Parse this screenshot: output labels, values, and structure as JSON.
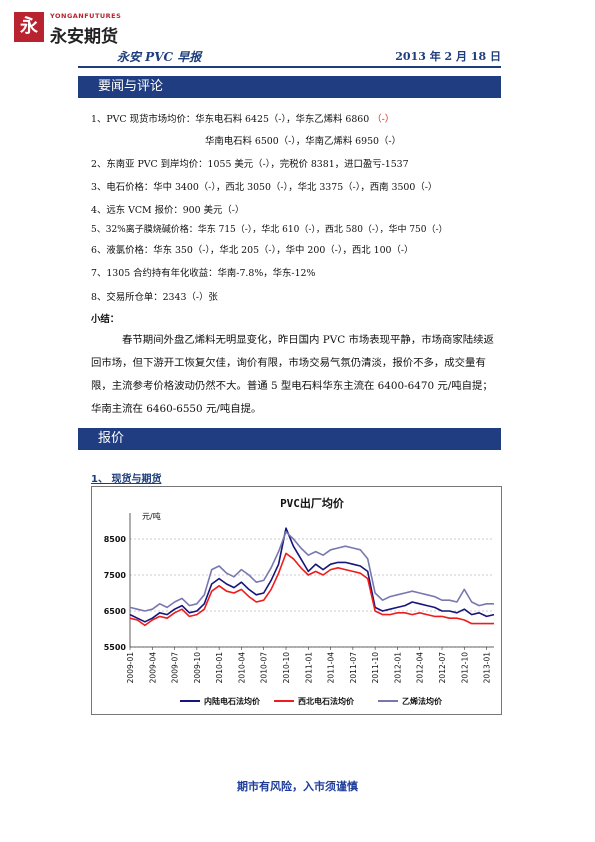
{
  "header": {
    "logo_mark": "永",
    "logo_en": "YONGANFUTURES",
    "logo_cn": "永安期货",
    "report_title": "永安 PVC 早报",
    "date": "2013 年 2 月 18 日"
  },
  "section_news": {
    "heading": "要闻与评论",
    "items": [
      {
        "text": "1、PVC 现货市场均价：华东电石料 6425（-），华东乙烯料 6860 ",
        "tail": "（-）"
      },
      {
        "text": "华南电石料 6500（-），华南乙烯料 6950（-）"
      },
      {
        "text": "2、东南亚 PVC 到岸均价：1055 美元（-），完税价 8381，进口盈亏-1537"
      },
      {
        "text": "3、电石价格：华中 3400（-），西北 3050（-），华北 3375（-），西南 3500（-）"
      },
      {
        "text": "4、远东 VCM 报价：900 美元（-）"
      },
      {
        "text": "5、32%离子膜烧碱价格：华东 715（-），华北 610（-），西北 580（-），华中 750（-）"
      },
      {
        "text": "6、液氯价格：华东 350（-），华北 205（-），华中 200（-），西北 100（-）"
      },
      {
        "text": "7、1305 合约持有年化收益：华南-7.8%，华东-12%"
      },
      {
        "text": "8、交易所仓单：2343（-）张"
      }
    ],
    "summary_label": "小结：",
    "summary": "春节期间外盘乙烯料无明显变化，昨日国内 PVC 市场表现平静，市场商家陆续返回市场，但下游开工恢复欠佳，询价有限，市场交易气氛仍清淡，报价不多，成交量有限，主流参考价格波动仍然不大。普通 5 型电石料华东主流在 6400-6470 元/吨自提；华南主流在 6460-6550 元/吨自提。"
  },
  "section_price": {
    "heading": "报价",
    "sub_heading": "1、 现货与期货"
  },
  "chart_data": {
    "type": "line",
    "title": "PVC出厂均价",
    "ylabel": "元/吨",
    "ylim": [
      5500,
      9000
    ],
    "yticks": [
      5500,
      6500,
      7500,
      8500
    ],
    "xlim": [
      "2009-01",
      "2013-02"
    ],
    "xticks": [
      "2009-01",
      "2009-04",
      "2009-07",
      "2009-10",
      "2010-01",
      "2010-04",
      "2010-07",
      "2010-10",
      "2011-01",
      "2011-04",
      "2011-07",
      "2011-10",
      "2012-01",
      "2012-04",
      "2012-07",
      "2012-10",
      "2013-01"
    ],
    "grid": true,
    "legend_position": "bottom",
    "x": [
      "2009-01",
      "2009-02",
      "2009-03",
      "2009-04",
      "2009-05",
      "2009-06",
      "2009-07",
      "2009-08",
      "2009-09",
      "2009-10",
      "2009-11",
      "2009-12",
      "2010-01",
      "2010-02",
      "2010-03",
      "2010-04",
      "2010-05",
      "2010-06",
      "2010-07",
      "2010-08",
      "2010-09",
      "2010-10",
      "2010-11",
      "2010-12",
      "2011-01",
      "2011-02",
      "2011-03",
      "2011-04",
      "2011-05",
      "2011-06",
      "2011-07",
      "2011-08",
      "2011-09",
      "2011-10",
      "2011-11",
      "2011-12",
      "2012-01",
      "2012-02",
      "2012-03",
      "2012-04",
      "2012-05",
      "2012-06",
      "2012-07",
      "2012-08",
      "2012-09",
      "2012-10",
      "2012-11",
      "2012-12",
      "2013-01",
      "2013-02"
    ],
    "series": [
      {
        "name": "内陆电石法均价",
        "color": "#15157a",
        "values": [
          6400,
          6300,
          6200,
          6300,
          6450,
          6400,
          6550,
          6650,
          6450,
          6500,
          6700,
          7250,
          7400,
          7250,
          7150,
          7300,
          7100,
          6950,
          7000,
          7350,
          7800,
          8800,
          8300,
          7950,
          7600,
          7800,
          7650,
          7800,
          7850,
          7850,
          7800,
          7750,
          7600,
          6600,
          6500,
          6550,
          6600,
          6650,
          6750,
          6700,
          6650,
          6600,
          6500,
          6500,
          6450,
          6550,
          6400,
          6450,
          6350,
          6400
        ]
      },
      {
        "name": "西北电石法均价",
        "color": "#ee1c1c",
        "values": [
          6300,
          6250,
          6100,
          6250,
          6350,
          6300,
          6450,
          6550,
          6350,
          6400,
          6550,
          7050,
          7200,
          7050,
          7000,
          7100,
          6900,
          6750,
          6800,
          7100,
          7550,
          8100,
          7950,
          7700,
          7500,
          7600,
          7500,
          7650,
          7700,
          7650,
          7600,
          7550,
          7400,
          6500,
          6400,
          6400,
          6450,
          6450,
          6400,
          6450,
          6400,
          6350,
          6350,
          6300,
          6300,
          6250,
          6150,
          6150,
          6150,
          6150
        ]
      },
      {
        "name": "乙烯法均价",
        "color": "#7878b0",
        "values": [
          6600,
          6550,
          6500,
          6550,
          6700,
          6600,
          6750,
          6850,
          6650,
          6700,
          6950,
          7650,
          7750,
          7550,
          7450,
          7650,
          7500,
          7300,
          7350,
          7700,
          8150,
          8700,
          8500,
          8250,
          8050,
          8150,
          8050,
          8200,
          8250,
          8300,
          8250,
          8200,
          7950,
          7000,
          6800,
          6900,
          6950,
          7000,
          7050,
          7000,
          6950,
          6900,
          6800,
          6800,
          6750,
          7100,
          6750,
          6650,
          6700,
          6700
        ]
      }
    ]
  },
  "footer": "期市有风险，入市须谨慎"
}
